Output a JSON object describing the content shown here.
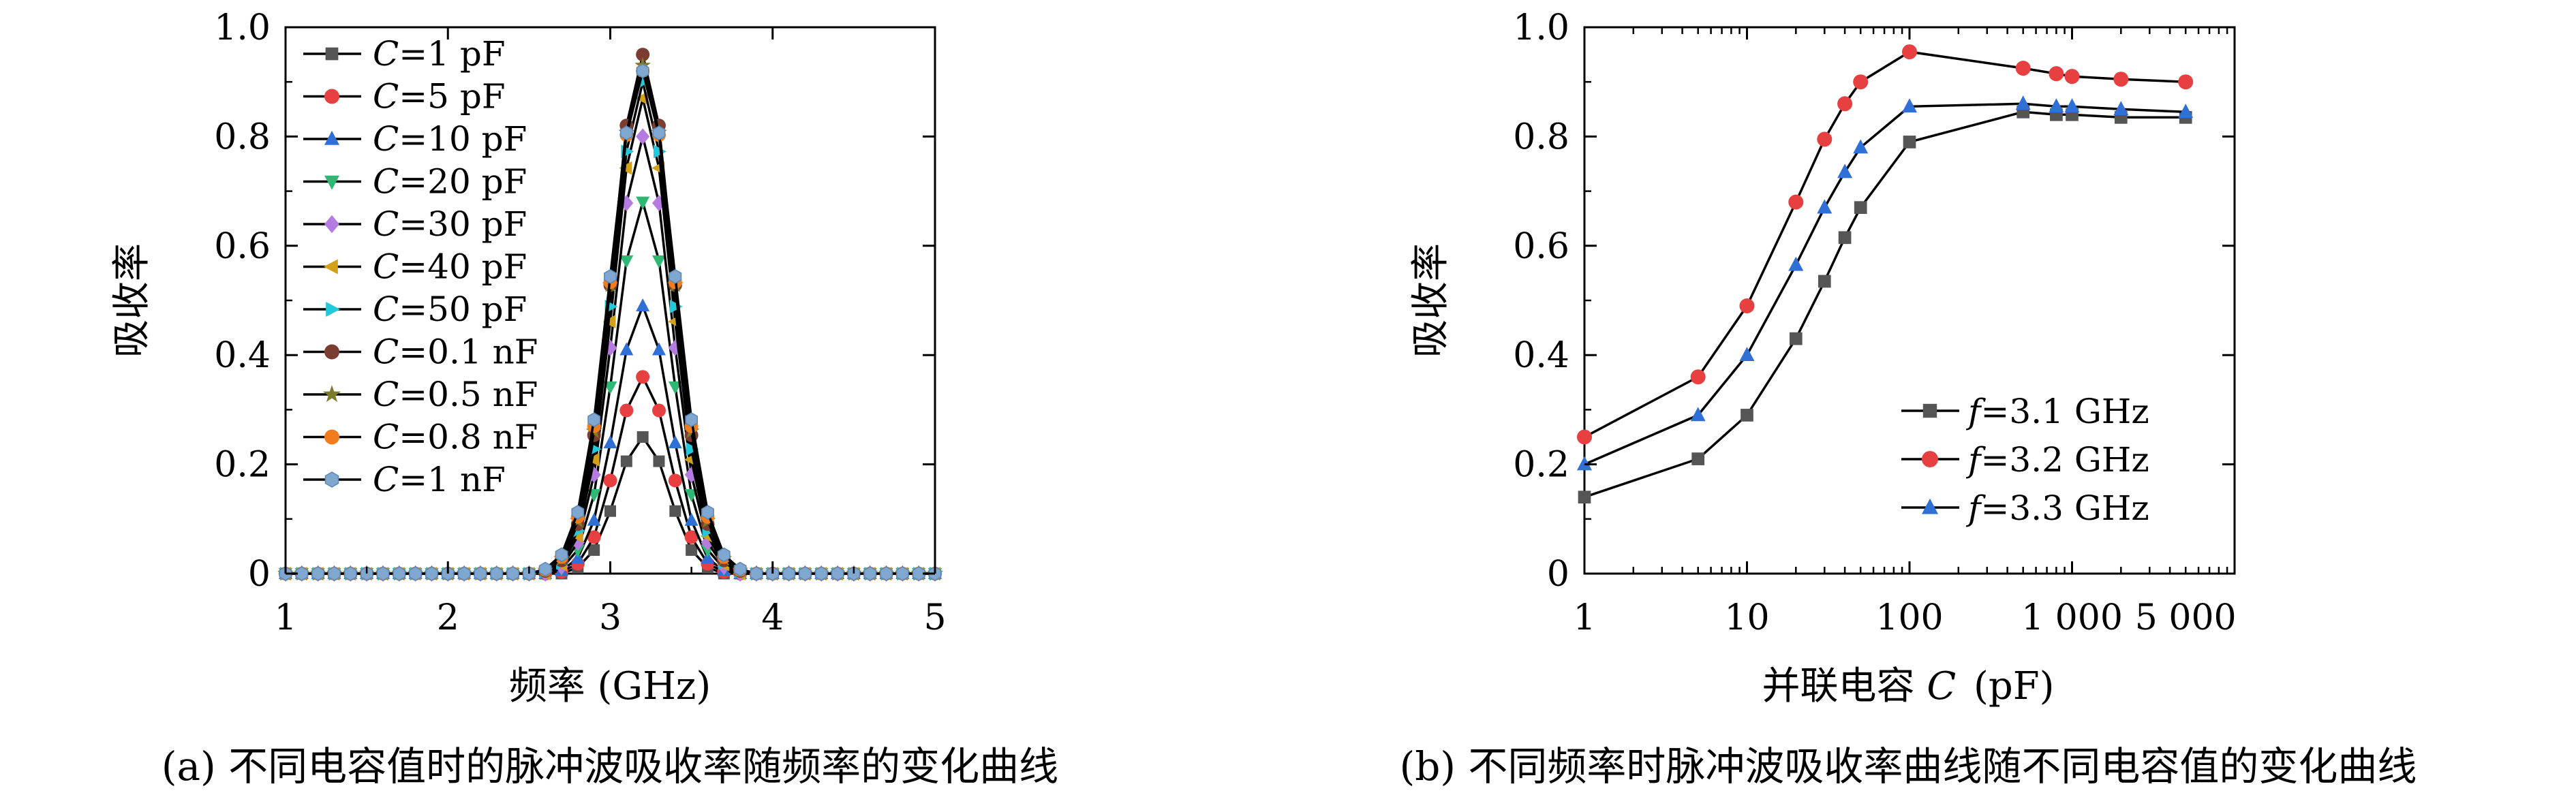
{
  "chart_data": [
    {
      "type": "line",
      "caption": "(a) 不同电容值时的脉冲波吸收率随频率的变化曲线",
      "xlabel": "频率 (GHz)",
      "ylabel": "吸收率",
      "xlim": [
        1,
        5
      ],
      "ylim": [
        0,
        1
      ],
      "xticks": [
        "1",
        "2",
        "3",
        "4",
        "5"
      ],
      "yticks": [
        "0",
        "0.2",
        "0.4",
        "0.6",
        "0.8",
        "1.0"
      ],
      "grid": false,
      "legend_position": "top-left",
      "x": [
        1.0,
        1.1,
        1.2,
        1.3,
        1.4,
        1.5,
        1.6,
        1.7,
        1.8,
        1.9,
        2.0,
        2.1,
        2.2,
        2.3,
        2.4,
        2.5,
        2.6,
        2.7,
        2.8,
        2.9,
        3.0,
        3.1,
        3.2,
        3.3,
        3.4,
        3.5,
        3.6,
        3.7,
        3.8,
        3.9,
        4.0,
        4.1,
        4.2,
        4.3,
        4.4,
        4.5,
        4.6,
        4.7,
        4.8,
        4.9,
        5.0
      ],
      "series": [
        {
          "name_prefix": "C",
          "name_suffix": "=1 pF",
          "color": "#555555",
          "marker": "square",
          "peak": 0.25
        },
        {
          "name_prefix": "C",
          "name_suffix": "=5 pF",
          "color": "#e84040",
          "marker": "circle",
          "peak": 0.36
        },
        {
          "name_prefix": "C",
          "name_suffix": "=10 pF",
          "color": "#2f6fd6",
          "marker": "triangle-up",
          "peak": 0.49
        },
        {
          "name_prefix": "C",
          "name_suffix": "=20 pF",
          "color": "#2eb873",
          "marker": "triangle-down",
          "peak": 0.68
        },
        {
          "name_prefix": "C",
          "name_suffix": "=30 pF",
          "color": "#b57be0",
          "marker": "diamond",
          "peak": 0.8
        },
        {
          "name_prefix": "C",
          "name_suffix": "=40 pF",
          "color": "#d4a017",
          "marker": "triangle-left",
          "peak": 0.87
        },
        {
          "name_prefix": "C",
          "name_suffix": "=50 pF",
          "color": "#22c8dc",
          "marker": "triangle-right",
          "peak": 0.9
        },
        {
          "name_prefix": "C",
          "name_suffix": "=0.1 nF",
          "color": "#7a3d30",
          "marker": "circle",
          "peak": 0.95
        },
        {
          "name_prefix": "C",
          "name_suffix": "=0.5 nF",
          "color": "#7d7a2a",
          "marker": "star",
          "peak": 0.93
        },
        {
          "name_prefix": "C",
          "name_suffix": "=0.8 nF",
          "color": "#f07c1e",
          "marker": "circle",
          "peak": 0.92
        },
        {
          "name_prefix": "C",
          "name_suffix": "=1 nF",
          "color": "#7fa7d0",
          "marker": "hexagon",
          "peak": 0.92
        }
      ]
    },
    {
      "type": "line",
      "caption": "(b) 不同频率时脉冲波吸收率曲线随不同电容值的变化曲线",
      "xlabel_text": "并联电容",
      "xlabel_var": "C",
      "xlabel_unit": "(pF)",
      "ylabel": "吸收率",
      "xscale": "log",
      "xlim": [
        1,
        10000
      ],
      "ylim": [
        0,
        1
      ],
      "xticks": [
        "1",
        "10",
        "100",
        "1 000",
        "5 000"
      ],
      "xtick_values": [
        1,
        10,
        100,
        1000,
        5000
      ],
      "yticks": [
        "0",
        "0.2",
        "0.4",
        "0.6",
        "0.8",
        "1.0"
      ],
      "grid": false,
      "legend_position": "bottom-right",
      "x": [
        1,
        5,
        10,
        20,
        30,
        40,
        50,
        100,
        500,
        800,
        1000,
        2000,
        5000
      ],
      "series": [
        {
          "name_prefix": "f",
          "name_suffix": "=3.1 GHz",
          "color": "#555555",
          "marker": "square",
          "values": [
            0.14,
            0.21,
            0.29,
            0.43,
            0.535,
            0.615,
            0.67,
            0.79,
            0.845,
            0.84,
            0.84,
            0.835,
            0.835
          ]
        },
        {
          "name_prefix": "f",
          "name_suffix": "=3.2 GHz",
          "color": "#e84040",
          "marker": "circle",
          "values": [
            0.25,
            0.36,
            0.49,
            0.68,
            0.795,
            0.86,
            0.9,
            0.955,
            0.925,
            0.915,
            0.91,
            0.905,
            0.9
          ]
        },
        {
          "name_prefix": "f",
          "name_suffix": "=3.3 GHz",
          "color": "#2f6fd6",
          "marker": "triangle-up",
          "values": [
            0.2,
            0.29,
            0.4,
            0.565,
            0.67,
            0.735,
            0.78,
            0.855,
            0.86,
            0.855,
            0.855,
            0.85,
            0.845
          ]
        }
      ]
    }
  ]
}
